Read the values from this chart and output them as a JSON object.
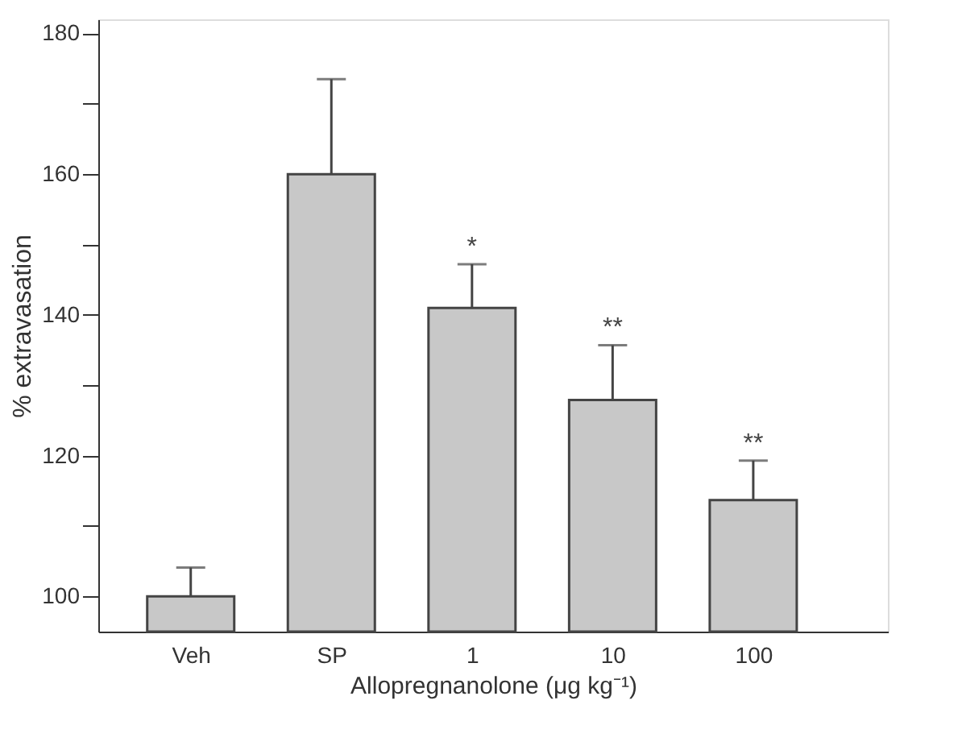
{
  "chart_data": {
    "type": "bar",
    "xlabel": "Allopregnanolone (μg kg⁻¹)",
    "ylabel": "% extravasation",
    "categories": [
      "Veh",
      "SP",
      "1",
      "10",
      "100"
    ],
    "values": [
      100,
      160,
      141,
      127.9,
      113.7
    ],
    "errors": [
      [
        100,
        104.1
      ],
      [
        160,
        173.5
      ],
      [
        141,
        147.2
      ],
      [
        127.9,
        135.7
      ],
      [
        113.7,
        119.3
      ]
    ],
    "color": "#c8c8c8",
    "ylim": [
      95,
      182
    ],
    "yticks": [
      100,
      {
        "value": 110,
        "label": null
      },
      120,
      {
        "value": 130,
        "label": null
      },
      140,
      {
        "value": 150,
        "label": null
      },
      160,
      {
        "value": 170,
        "label": null
      },
      180
    ],
    "grid": false,
    "annotations": [
      {
        "text": "*",
        "x": "1",
        "y": 147.2
      },
      {
        "text": "**",
        "x": "10",
        "y": 135.7
      },
      {
        "text": "**",
        "x": "100",
        "y": 119.3
      }
    ]
  }
}
